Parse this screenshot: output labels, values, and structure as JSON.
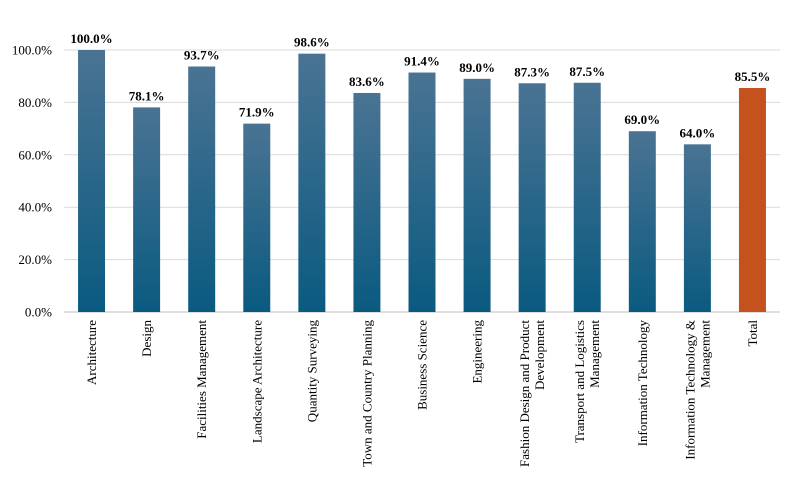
{
  "chart_data": {
    "type": "bar",
    "categories": [
      [
        "Architecture"
      ],
      [
        "Design"
      ],
      [
        "Facilities Management"
      ],
      [
        "Landscape Architecture"
      ],
      [
        "Quantity Surveying"
      ],
      [
        "Town and Country Planning"
      ],
      [
        "Business Science"
      ],
      [
        "Engineering"
      ],
      [
        "Fashion Design and Product",
        "Development"
      ],
      [
        "Transport and Logistics",
        "Management"
      ],
      [
        "Information Technology"
      ],
      [
        "Information Technology &",
        "Management"
      ],
      [
        "Total"
      ]
    ],
    "values": [
      100.0,
      78.1,
      93.7,
      71.9,
      98.6,
      83.6,
      91.4,
      89.0,
      87.3,
      87.5,
      69.0,
      64.0,
      85.5
    ],
    "data_labels": [
      "100.0%",
      "78.1%",
      "93.7%",
      "71.9%",
      "98.6%",
      "83.6%",
      "91.4%",
      "89.0%",
      "87.3%",
      "87.5%",
      "69.0%",
      "64.0%",
      "85.5%"
    ],
    "highlight_index": 12,
    "yticks": [
      "0.0%",
      "20.0%",
      "40.0%",
      "60.0%",
      "80.0%",
      "100.0%"
    ],
    "ylim": [
      0,
      100
    ],
    "grid": true,
    "colors": {
      "bar_top": "#4a7393",
      "bar_bottom": "#0a5a80",
      "highlight": "#c5521c",
      "grid": "#d9d9d9",
      "axis": "#bfbfbf"
    },
    "title": "",
    "xlabel": "",
    "ylabel": ""
  }
}
